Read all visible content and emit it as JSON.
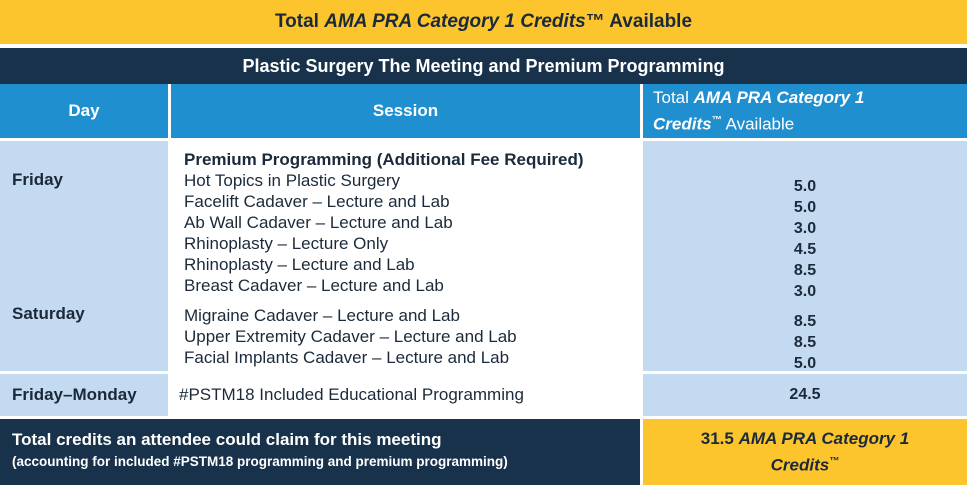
{
  "title": {
    "prefix": "Total ",
    "italic": "AMA PRA Category 1 Credits",
    "tm": "™",
    "suffix": " Available"
  },
  "subtitle": "Plastic Surgery The Meeting and Premium Programming",
  "headers": {
    "day": "Day",
    "session": "Session",
    "credits_prefix": "Total ",
    "credits_italic_1": "AMA PRA Category 1",
    "credits_italic_2": "Credits",
    "credits_tm": "™",
    "credits_suffix": " Available"
  },
  "premium": {
    "day_friday": "Friday",
    "day_saturday": "Saturday",
    "heading": "Premium Programming (Additional Fee Required)",
    "sessions": [
      {
        "name": "Hot Topics in Plastic Surgery",
        "credits": "5.0"
      },
      {
        "name": "Facelift Cadaver – Lecture and Lab",
        "credits": "5.0"
      },
      {
        "name": "Ab Wall Cadaver – Lecture and Lab",
        "credits": "3.0"
      },
      {
        "name": "Rhinoplasty – Lecture Only",
        "credits": "4.5"
      },
      {
        "name": "Rhinoplasty – Lecture and Lab",
        "credits": "8.5"
      },
      {
        "name": "Breast Cadaver – Lecture and Lab",
        "credits": "3.0"
      },
      {
        "name": "Migraine Cadaver – Lecture and Lab",
        "credits": "8.5"
      },
      {
        "name": "Upper Extremity Cadaver – Lecture and Lab",
        "credits": "8.5"
      },
      {
        "name": "Facial Implants Cadaver – Lecture and Lab",
        "credits": "5.0"
      }
    ]
  },
  "included": {
    "day": "Friday–Monday",
    "session": "#PSTM18 Included Educational Programming",
    "credits": "24.5"
  },
  "total": {
    "label": "Total credits an attendee could claim for this meeting",
    "note": "(accounting for included #PSTM18 programming and premium programming)",
    "value_prefix": "31.5 ",
    "value_italic_1": "AMA PRA Category 1",
    "value_italic_2": "Credits",
    "value_tm": "™"
  },
  "colors": {
    "gold": "#fcc52e",
    "navy": "#17324a",
    "blue": "#1f8fd0",
    "light_blue": "#c4daf0"
  }
}
